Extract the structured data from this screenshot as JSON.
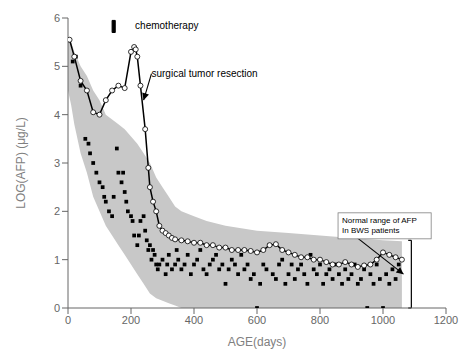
{
  "chart_data": {
    "type": "line",
    "xlabel": "AGE(days)",
    "ylabel": "LOG(AFP) (μg/L)",
    "xlim": [
      0,
      1200
    ],
    "ylim": [
      0,
      6
    ],
    "xticks": [
      0,
      200,
      400,
      600,
      800,
      1000,
      1200
    ],
    "yticks": [
      0,
      1,
      2,
      3,
      4,
      5,
      6
    ],
    "grid": false,
    "series": [
      {
        "type": "area",
        "color": "#c8c8c8",
        "x": [
          0,
          10,
          20,
          40,
          60,
          80,
          100,
          120,
          140,
          160,
          180,
          200,
          220,
          240,
          260,
          280,
          300,
          320,
          340,
          360,
          400,
          440,
          500,
          600,
          700,
          800,
          900,
          1000,
          1060
        ],
        "lower": [
          4.5,
          4.2,
          3.8,
          3.2,
          2.8,
          2.3,
          2.0,
          1.7,
          1.5,
          1.3,
          1.1,
          0.9,
          0.7,
          0.5,
          0.3,
          0.2,
          0.15,
          0.1,
          0.05,
          0.0,
          0.0,
          0.0,
          0.0,
          0.0,
          0.0,
          0.0,
          0.0,
          0.0,
          0.0
        ],
        "upper": [
          5.6,
          5.5,
          5.3,
          5.0,
          4.8,
          4.5,
          4.3,
          4.0,
          3.9,
          3.8,
          3.7,
          3.55,
          3.4,
          3.2,
          3.0,
          2.7,
          2.5,
          2.3,
          2.1,
          2.0,
          1.9,
          1.8,
          1.7,
          1.6,
          1.55,
          1.5,
          1.45,
          1.4,
          1.38
        ]
      },
      {
        "type": "scatter",
        "color": "#000000",
        "marker": "square",
        "x": [
          15,
          25,
          40,
          55,
          65,
          70,
          80,
          90,
          100,
          110,
          115,
          120,
          130,
          140,
          145,
          155,
          160,
          170,
          175,
          180,
          185,
          190,
          200,
          205,
          210,
          220,
          225,
          230,
          240,
          245,
          250,
          255,
          260,
          265,
          270,
          275,
          280,
          285,
          290,
          300,
          310,
          315,
          320,
          330,
          340,
          345,
          350,
          360,
          370,
          380,
          390,
          400,
          410,
          420,
          430,
          440,
          450,
          460,
          470,
          480,
          490,
          500,
          510,
          520,
          530,
          540,
          550,
          560,
          570,
          580,
          590,
          600,
          610,
          620,
          630,
          640,
          650,
          660,
          670,
          680,
          690,
          700,
          710,
          720,
          730,
          740,
          750,
          760,
          770,
          780,
          790,
          800,
          810,
          820,
          830,
          840,
          850,
          860,
          870,
          880,
          890,
          900,
          910,
          920,
          930,
          940,
          950,
          960,
          970,
          980,
          990,
          1000,
          1010,
          1020,
          1030,
          1040,
          1050
        ],
        "values": [
          5.1,
          5.2,
          4.6,
          3.5,
          3.4,
          3.2,
          3.0,
          2.8,
          2.6,
          2.5,
          2.3,
          2.2,
          2.0,
          1.9,
          2.3,
          3.3,
          2.8,
          2.6,
          2.8,
          2.4,
          2.2,
          2.0,
          1.9,
          1.8,
          1.5,
          1.3,
          1.5,
          1.8,
          1.9,
          1.6,
          1.4,
          1.2,
          1.3,
          1.0,
          1.2,
          1.1,
          0.9,
          0.8,
          0.9,
          1.0,
          0.7,
          0.9,
          1.1,
          0.8,
          0.9,
          1.2,
          1.0,
          0.8,
          0.9,
          1.1,
          0.7,
          0.9,
          1.0,
          1.2,
          0.8,
          0.7,
          0.9,
          1.0,
          1.1,
          0.8,
          0.9,
          0.5,
          0.8,
          1.0,
          0.9,
          0.7,
          1.1,
          0.8,
          0.9,
          0.6,
          0.7,
          0.0,
          0.5,
          0.9,
          0.8,
          1.3,
          0.7,
          0.6,
          0.9,
          1.0,
          0.5,
          0.7,
          0.9,
          0.6,
          0.8,
          0.9,
          0.7,
          0.5,
          1.1,
          0.8,
          0.7,
          0.9,
          0.5,
          0.7,
          0.8,
          0.6,
          0.9,
          0.7,
          0.5,
          0.8,
          0.6,
          0.7,
          0.9,
          0.5,
          0.6,
          0.8,
          0.0,
          0.7,
          0.5,
          0.9,
          0.6,
          0.0,
          0.7,
          0.5,
          0.8,
          0.6,
          0.9
        ]
      },
      {
        "type": "line",
        "color": "#000000",
        "marker": "circle",
        "x": [
          5,
          20,
          40,
          60,
          80,
          100,
          120,
          140,
          160,
          180,
          200,
          210,
          215,
          220,
          230,
          245,
          255,
          260,
          270,
          280,
          290,
          300,
          310,
          320,
          330,
          340,
          360,
          380,
          400,
          420,
          440,
          460,
          480,
          500,
          520,
          540,
          560,
          580,
          600,
          620,
          640,
          660,
          680,
          700,
          720,
          740,
          760,
          780,
          800,
          820,
          840,
          860,
          880,
          900,
          920,
          940,
          960,
          980,
          1000,
          1020,
          1040,
          1060
        ],
        "values": [
          5.55,
          5.2,
          4.7,
          4.5,
          4.05,
          4.0,
          4.3,
          4.5,
          4.6,
          4.55,
          5.3,
          5.4,
          5.35,
          5.2,
          4.6,
          3.7,
          2.9,
          2.5,
          2.2,
          2.0,
          1.7,
          1.6,
          1.55,
          1.5,
          1.45,
          1.42,
          1.4,
          1.38,
          1.35,
          1.35,
          1.3,
          1.3,
          1.25,
          1.25,
          1.2,
          1.2,
          1.2,
          1.18,
          1.15,
          1.2,
          1.3,
          1.32,
          1.2,
          1.15,
          1.1,
          1.05,
          1.05,
          1.0,
          1.0,
          0.95,
          0.9,
          0.9,
          0.95,
          0.9,
          0.85,
          0.88,
          0.9,
          1.0,
          1.15,
          1.1,
          1.05,
          1.0
        ]
      }
    ],
    "annotations": [
      {
        "text": "chemotherapy",
        "x": 213,
        "y": 5.85,
        "box": {
          "x": [
            140,
            150
          ],
          "y": [
            5.7,
            5.95
          ]
        }
      },
      {
        "text": "surgical tumor resection",
        "x": 265,
        "y": 4.85,
        "arrow_to": [
          240,
          4.3
        ]
      },
      {
        "text": "Normal range of AFP\nIn BWS patients",
        "x": 870,
        "y": 1.7,
        "arrow_to": [
          1065,
          0.7
        ],
        "bracket": {
          "x": [
            1080,
            1090
          ],
          "y": [
            0,
            1.4
          ]
        }
      }
    ]
  }
}
